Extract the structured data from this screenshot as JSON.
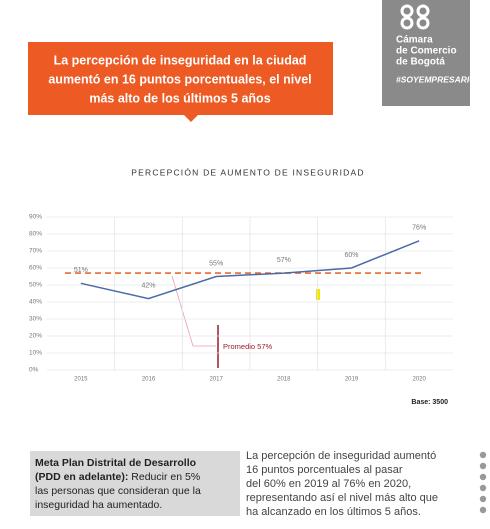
{
  "header": {
    "title_lines": [
      "La percepción de inseguridad en la ciudad",
      "aumentó en 16 puntos porcentuales, el nivel",
      "más alto de los últimos 5 años"
    ],
    "logo_lines": [
      "Cámara",
      "de Comercio",
      "de Bogotá"
    ],
    "hashtag": "#SOYEMPRESARIO"
  },
  "chart_data": {
    "type": "line",
    "title": "PERCEPCIÓN DE AUMENTO DE INSEGURIDAD",
    "categories": [
      "2015",
      "2016",
      "2017",
      "2018",
      "2019",
      "2020"
    ],
    "values": [
      51,
      42,
      55,
      57,
      60,
      76
    ],
    "value_labels": [
      "51%",
      "42%",
      "55%",
      "57%",
      "60%",
      "76%"
    ],
    "color": "#4a6aa8",
    "average": 57,
    "average_label": "Promedio 57%",
    "average_color": "#e8692f",
    "ylim": [
      0,
      90
    ],
    "yticks": [
      {
        "value": 0,
        "label": "0%"
      },
      {
        "value": 10,
        "label": "10%"
      },
      {
        "value": 20,
        "label": "20%"
      },
      {
        "value": 30,
        "label": "30%"
      },
      {
        "value": 40,
        "label": "40%"
      },
      {
        "value": 50,
        "label": "50%"
      },
      {
        "value": 60,
        "label": "60%"
      },
      {
        "value": 70,
        "label": "70%"
      },
      {
        "value": 80,
        "label": "80%"
      },
      {
        "value": 90,
        "label": "90%"
      }
    ],
    "grid": true,
    "note": "Base: 3500"
  },
  "note": {
    "bold_lines": [
      "Meta Plan Distrital de Desarrollo",
      "(PDD en adelante):"
    ],
    "text_lines": [
      "Reducir en 5%",
      "las personas que consideran que la",
      "inseguridad ha aumentado."
    ]
  },
  "summary_lines": [
    "La percepción de inseguridad aumentó",
    "16 puntos porcentuales al pasar",
    "del 60% en 2019 al 76% en 2020,",
    "representando así el nivel más alto que",
    "ha alcanzado en los últimos 5 años."
  ]
}
